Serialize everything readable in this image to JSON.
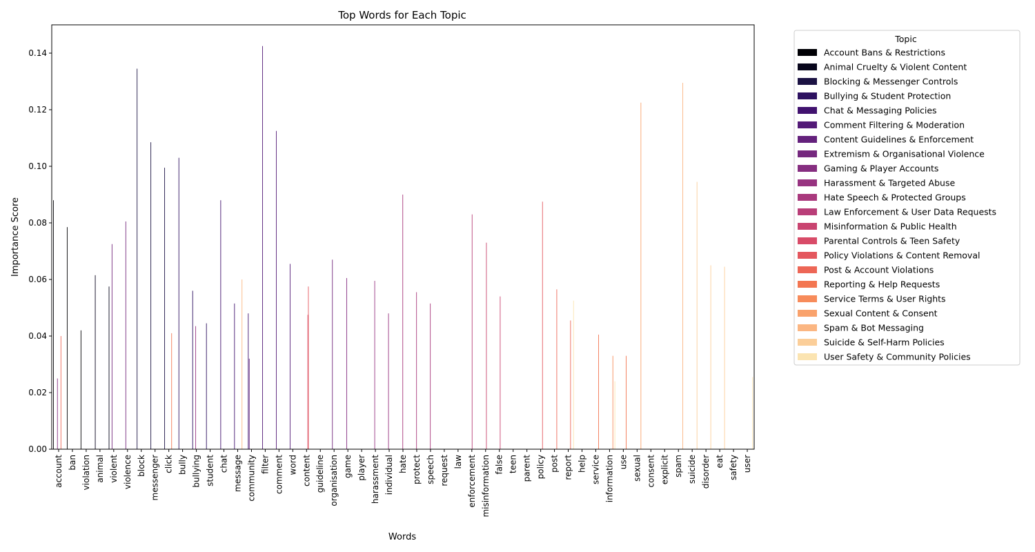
{
  "chart_data": {
    "type": "bar",
    "title": "Top Words for Each Topic",
    "xlabel": "Words",
    "ylabel": "Importance Score",
    "ylim": [
      0,
      0.15
    ],
    "yticks": [
      "0.00",
      "0.02",
      "0.04",
      "0.06",
      "0.08",
      "0.10",
      "0.12",
      "0.14"
    ],
    "grid": false,
    "legend": {
      "title": "Topic",
      "placement": "outside-top-right"
    },
    "categories": [
      "account",
      "ban",
      "violation",
      "animal",
      "violent",
      "violence",
      "block",
      "messenger",
      "click",
      "bully",
      "bullying",
      "student",
      "chat",
      "message",
      "community",
      "filter",
      "comment",
      "word",
      "content",
      "guideline",
      "organisation",
      "game",
      "player",
      "harassment",
      "individual",
      "hate",
      "protect",
      "speech",
      "request",
      "law",
      "enforcement",
      "misinformation",
      "false",
      "teen",
      "parent",
      "policy",
      "post",
      "report",
      "help",
      "service",
      "information",
      "use",
      "sexual",
      "consent",
      "explicit",
      "spam",
      "suicide",
      "disorder",
      "eat",
      "safety",
      "user"
    ],
    "series": [
      {
        "name": "Account Bans & Restrictions",
        "color": "#000004",
        "values": {
          "account": 0.088,
          "ban": 0.0785,
          "violation": 0.042
        }
      },
      {
        "name": "Animal Cruelty & Violent Content",
        "color": "#08061c",
        "values": {
          "animal": 0.0615,
          "violent": 0.0575
        }
      },
      {
        "name": "Blocking & Messenger Controls",
        "color": "#1b1243",
        "values": {
          "block": 0.1345,
          "messenger": 0.1085,
          "click": 0.0995
        }
      },
      {
        "name": "Bullying & Student Protection",
        "color": "#2d1160",
        "values": {
          "bully": 0.103,
          "bullying": 0.056,
          "student": 0.0445
        }
      },
      {
        "name": "Chat & Messaging Policies",
        "color": "#41126f",
        "values": {
          "chat": 0.088,
          "message": 0.0515,
          "community": 0.048
        }
      },
      {
        "name": "Comment Filtering & Moderation",
        "color": "#531a77",
        "values": {
          "filter": 0.1425,
          "comment": 0.1125,
          "word": 0.0655
        }
      },
      {
        "name": "Content Guidelines & Enforcement",
        "color": "#64217c",
        "values": {
          "community": 0.032,
          "content": 0.0
        }
      },
      {
        "name": "Extremism & Organisational Violence",
        "color": "#75287e",
        "values": {
          "violent": 0.0725,
          "violence": 0.0805,
          "organisation": 0.067
        }
      },
      {
        "name": "Gaming & Player Accounts",
        "color": "#862e80",
        "values": {
          "account": 0.025,
          "game": 0.0605
        }
      },
      {
        "name": "Harassment & Targeted Abuse",
        "color": "#973380",
        "values": {
          "harassment": 0.0595,
          "individual": 0.048,
          "bullying": 0.0435
        }
      },
      {
        "name": "Hate Speech & Protected Groups",
        "color": "#a9397d",
        "values": {
          "hate": 0.09,
          "protect": 0.0555,
          "speech": 0.0515
        }
      },
      {
        "name": "Law Enforcement & User Data Requests",
        "color": "#b93e78",
        "values": {
          "enforcement": 0.083
        }
      },
      {
        "name": "Misinformation & Public Health",
        "color": "#c94470",
        "values": {
          "misinformation": 0.073,
          "false": 0.054
        }
      },
      {
        "name": "Parental Controls & Teen Safety",
        "color": "#d84b68",
        "values": {
          "content": 0.0475
        }
      },
      {
        "name": "Policy Violations & Content Removal",
        "color": "#e4575e",
        "values": {
          "policy": 0.0875,
          "content": 0.0575
        }
      },
      {
        "name": "Post & Account Violations",
        "color": "#ed6656",
        "values": {
          "post": 0.0565,
          "report": 0.0455,
          "account": 0.04
        }
      },
      {
        "name": "Reporting & Help Requests",
        "color": "#f37651",
        "values": {
          "click": 0.041,
          "service": 0.0405,
          "use": 0.033
        }
      },
      {
        "name": "Service Terms & User Rights",
        "color": "#f78b5a",
        "values": {
          "information": 0.033
        }
      },
      {
        "name": "Sexual Content & Consent",
        "color": "#f9a26c",
        "values": {
          "sexual": 0.1225
        }
      },
      {
        "name": "Spam & Bot Messaging",
        "color": "#fbb682",
        "values": {
          "spam": 0.1295,
          "message": 0.06
        }
      },
      {
        "name": "Suicide & Self-Harm Policies",
        "color": "#fbce99",
        "values": {
          "suicide": 0.0945,
          "disorder": 0.065,
          "eat": 0.0645
        }
      },
      {
        "name": "User Safety & Community Policies",
        "color": "#fbe4b1",
        "values": {
          "report": 0.0525,
          "information": 0.024,
          "user": 0.0255
        }
      }
    ]
  }
}
